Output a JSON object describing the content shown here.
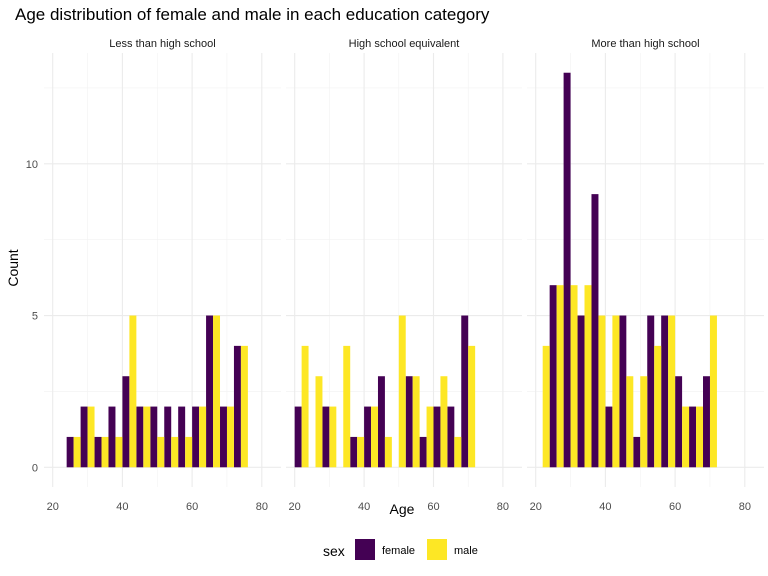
{
  "chart_data": {
    "type": "bar",
    "title": "Age distribution of female and male in each education category",
    "xlabel": "Age",
    "ylabel": "Count",
    "xlim": [
      17.5,
      85.5
    ],
    "ylim": [
      -0.65,
      13.65
    ],
    "x_ticks": [
      20,
      40,
      60,
      80
    ],
    "y_ticks": [
      0,
      5,
      10
    ],
    "grid": true,
    "legend": {
      "title": "sex",
      "position": "bottom",
      "entries": [
        {
          "name": "female",
          "color": "#440154"
        },
        {
          "name": "male",
          "color": "#FDE725"
        }
      ]
    },
    "bin_width": 4,
    "bin_centers": [
      22,
      26,
      30,
      34,
      38,
      42,
      46,
      50,
      54,
      58,
      62,
      66,
      70,
      74,
      78,
      82
    ],
    "panels": [
      {
        "title": "Less than high school",
        "series": [
          {
            "name": "female",
            "values": [
              0,
              1,
              2,
              1,
              2,
              3,
              2,
              2,
              2,
              2,
              2,
              5,
              2,
              4,
              0,
              0
            ]
          },
          {
            "name": "male",
            "values": [
              0,
              1,
              2,
              1,
              1,
              5,
              2,
              1,
              1,
              1,
              2,
              5,
              2,
              4,
              0,
              0
            ]
          }
        ]
      },
      {
        "title": "High school equivalent",
        "series": [
          {
            "name": "female",
            "values": [
              2,
              0,
              2,
              0,
              1,
              2,
              3,
              0,
              3,
              1,
              2,
              2,
              5,
              0,
              0,
              0
            ]
          },
          {
            "name": "male",
            "values": [
              4,
              3,
              2,
              4,
              1,
              2,
              1,
              5,
              3,
              2,
              3,
              1,
              4,
              0,
              0,
              0
            ]
          }
        ]
      },
      {
        "title": "More than high school",
        "series": [
          {
            "name": "female",
            "values": [
              0,
              6,
              13,
              5,
              9,
              2,
              5,
              1,
              5,
              5,
              3,
              2,
              3,
              0,
              0,
              0
            ]
          },
          {
            "name": "male",
            "values": [
              4,
              6,
              6,
              6,
              5,
              5,
              3,
              3,
              4,
              5,
              2,
              2,
              5,
              0,
              0,
              0
            ]
          }
        ]
      }
    ]
  }
}
